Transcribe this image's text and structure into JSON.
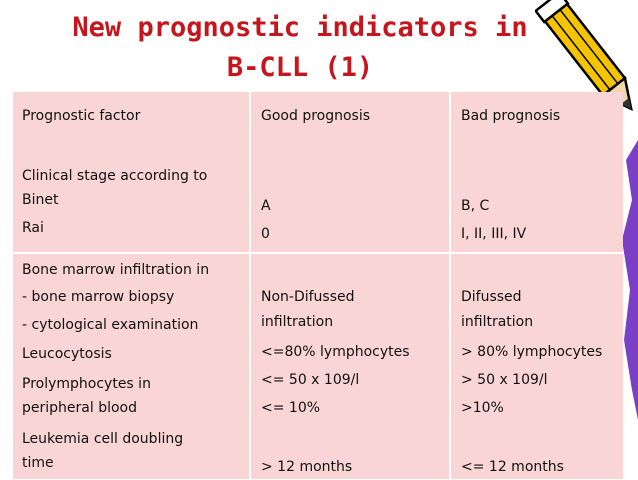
{
  "title": {
    "line1": "New prognostic indicators in",
    "line2": "B-CLL (1)"
  },
  "table": {
    "headers": [
      "Prognostic factor",
      "Good prognosis",
      "Bad prognosis"
    ],
    "section1": {
      "factor": [
        "Clinical stage according to",
        "Binet",
        "Rai"
      ],
      "good": [
        "A",
        "0"
      ],
      "bad": [
        "B, C",
        "I, II, III, IV"
      ]
    },
    "section2": {
      "factor": [
        "Bone marrow infiltration in",
        "- bone marrow biopsy",
        "- cytological examination",
        "Leucocytosis",
        "Prolymphocytes in",
        "peripheral blood",
        "Leukemia cell doubling",
        "time"
      ],
      "good": [
        "Non-Difussed",
        "infiltration",
        "<=80% lymphocytes",
        "<= 50 x 109/l",
        "<= 10%",
        "> 12 months"
      ],
      "bad": [
        "Difussed",
        "infiltration",
        "> 80% lymphocytes",
        "> 50 x 109/l",
        ">10%",
        "<= 12 months"
      ]
    }
  },
  "decor": {
    "pencil_icon": "pencil-icon",
    "side_shape": "decorative-shape"
  }
}
